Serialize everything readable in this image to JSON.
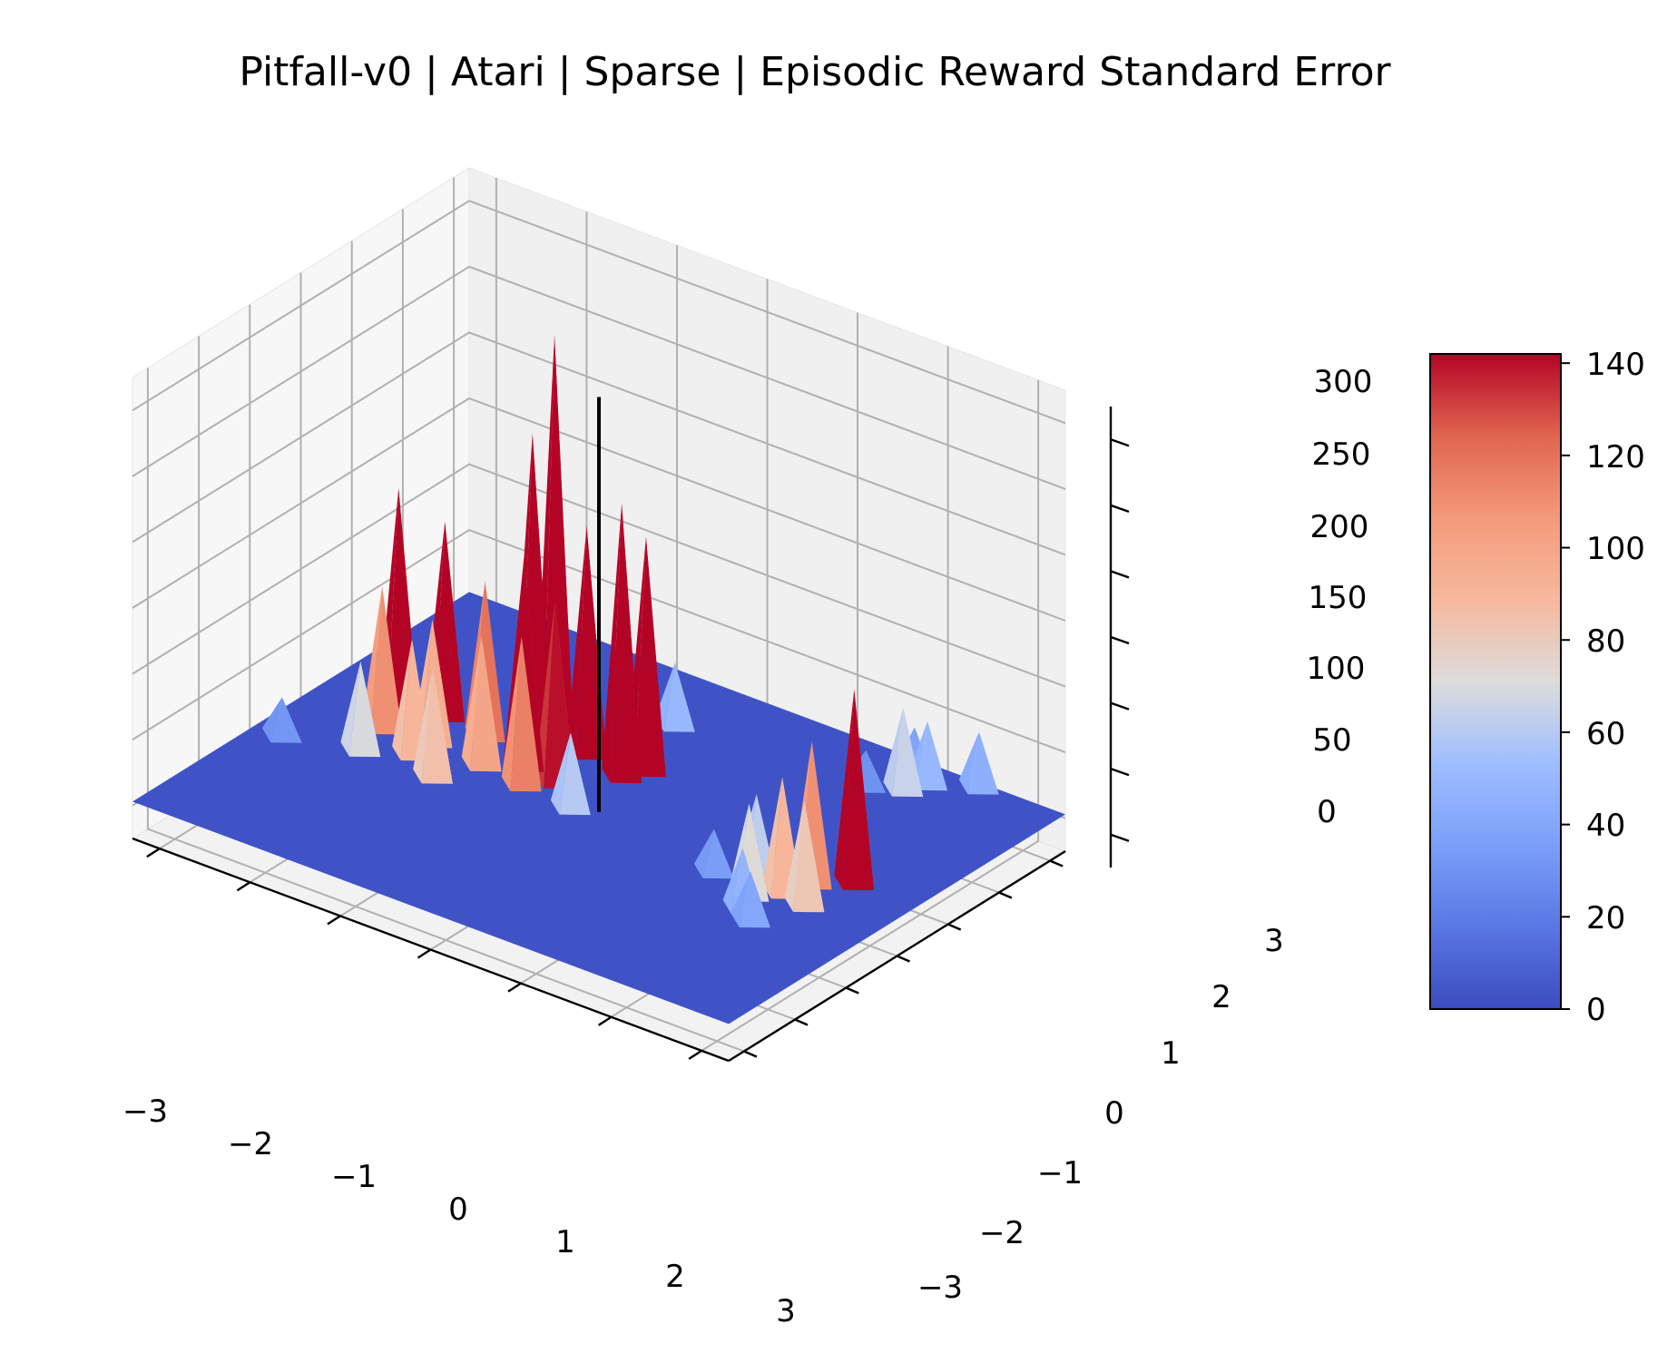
{
  "chart_data": {
    "type": "surface",
    "title": "Pitfall-v0 | Atari | Sparse | Episodic Reward Standard Error",
    "xlabel": "",
    "ylabel": "",
    "zlabel": "",
    "x_ticks": [
      "−3",
      "−2",
      "−1",
      "0",
      "1",
      "2",
      "3"
    ],
    "y_ticks": [
      "−3",
      "−2",
      "−1",
      "0",
      "1",
      "2",
      "3"
    ],
    "z_ticks": [
      "0",
      "50",
      "100",
      "150",
      "200",
      "250",
      "300"
    ],
    "xlim": [
      -3.3,
      3.3
    ],
    "ylim": [
      -3.3,
      3.3
    ],
    "zlim": [
      -25,
      325
    ],
    "colormap": "coolwarm",
    "colorbar": {
      "range": [
        0,
        142
      ],
      "ticks": [
        "0",
        "20",
        "40",
        "60",
        "80",
        "100",
        "120",
        "140"
      ],
      "tick_values": [
        0,
        20,
        40,
        60,
        80,
        100,
        120,
        140
      ]
    },
    "base_level": 3,
    "grid": true,
    "vertical_line": {
      "x": 0,
      "y": 0,
      "z_range": [
        0,
        315
      ]
    },
    "peaks": [
      {
        "x": -1.0,
        "y": 0.9,
        "z": 315
      },
      {
        "x": -1.3,
        "y": 1.0,
        "z": 230
      },
      {
        "x": -0.2,
        "y": 0.8,
        "z": 210
      },
      {
        "x": -0.1,
        "y": 1.1,
        "z": 180
      },
      {
        "x": -0.7,
        "y": 1.0,
        "z": 175
      },
      {
        "x": -1.0,
        "y": 0.3,
        "z": 160
      },
      {
        "x": -0.6,
        "y": 0.2,
        "z": 140
      },
      {
        "x": -1.6,
        "y": 0.6,
        "z": 120
      },
      {
        "x": -0.8,
        "y": -0.1,
        "z": 115
      },
      {
        "x": -1.3,
        "y": 0.0,
        "z": 100
      },
      {
        "x": -1.9,
        "y": 0.1,
        "z": 95
      },
      {
        "x": -1.5,
        "y": -0.6,
        "z": 85
      },
      {
        "x": -2.5,
        "y": 0.5,
        "z": 170
      },
      {
        "x": -2.1,
        "y": 0.7,
        "z": 150
      },
      {
        "x": -2.4,
        "y": 0.0,
        "z": 110
      },
      {
        "x": -1.9,
        "y": -0.3,
        "z": 90
      },
      {
        "x": -2.3,
        "y": -0.6,
        "z": 70
      },
      {
        "x": -0.5,
        "y": 1.6,
        "z": 55
      },
      {
        "x": -0.2,
        "y": -0.2,
        "z": 60
      },
      {
        "x": -3.0,
        "y": -0.9,
        "z": 32
      },
      {
        "x": -0.4,
        "y": 2.2,
        "z": 50
      },
      {
        "x": 1.9,
        "y": 2.6,
        "z": 65
      },
      {
        "x": 2.0,
        "y": 2.9,
        "z": 50
      },
      {
        "x": 2.4,
        "y": 3.2,
        "z": 45
      },
      {
        "x": 1.8,
        "y": 3.0,
        "z": 38
      },
      {
        "x": 1.6,
        "y": 2.4,
        "z": 30
      },
      {
        "x": 2.6,
        "y": 0.4,
        "z": 150
      },
      {
        "x": 2.3,
        "y": 0.1,
        "z": 110
      },
      {
        "x": 2.2,
        "y": -0.3,
        "z": 90
      },
      {
        "x": 2.0,
        "y": -0.6,
        "z": 72
      },
      {
        "x": 2.5,
        "y": -0.4,
        "z": 82
      },
      {
        "x": 1.8,
        "y": -0.1,
        "z": 62
      },
      {
        "x": 2.1,
        "y": -0.9,
        "z": 48
      },
      {
        "x": 1.5,
        "y": -0.4,
        "z": 35
      },
      {
        "x": 2.3,
        "y": -1.1,
        "z": 40
      }
    ]
  }
}
